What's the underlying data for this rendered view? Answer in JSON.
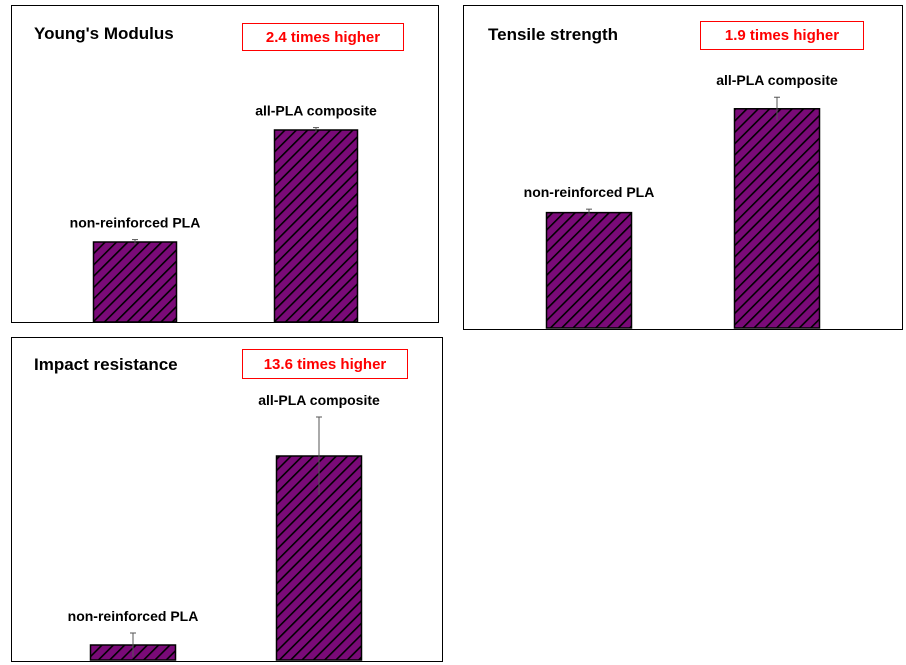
{
  "colors": {
    "bar_fill": "#7a0a78",
    "hatch": "#000000",
    "badge": "#ff0000",
    "error_bar": "#555555"
  },
  "chart_data": [
    {
      "type": "bar",
      "title": "Young's Modulus",
      "annotation": "2.4 times higher",
      "categories": [
        "non-reinforced PLA",
        "all-PLA composite"
      ],
      "values": [
        1.0,
        2.4
      ],
      "errors": [
        0.03,
        0.03
      ],
      "ylim": [
        0,
        3.0
      ],
      "xlabel": "",
      "ylabel": "",
      "grid": false,
      "axis_ticks": false
    },
    {
      "type": "bar",
      "title": "Tensile strength",
      "annotation": "1.9 times higher",
      "categories": [
        "non-reinforced PLA",
        "all-PLA composite"
      ],
      "values": [
        1.0,
        1.9
      ],
      "errors": [
        0.03,
        0.1
      ],
      "ylim": [
        0,
        2.6
      ],
      "xlabel": "",
      "ylabel": "",
      "grid": false,
      "axis_ticks": false
    },
    {
      "type": "bar",
      "title": "Impact resistance",
      "annotation": "13.6 times higher",
      "categories": [
        "non-reinforced PLA",
        "all-PLA composite"
      ],
      "values": [
        1.0,
        13.6
      ],
      "errors": [
        0.8,
        2.6
      ],
      "ylim": [
        0,
        20
      ],
      "xlabel": "",
      "ylabel": "",
      "grid": false,
      "axis_ticks": false
    }
  ]
}
